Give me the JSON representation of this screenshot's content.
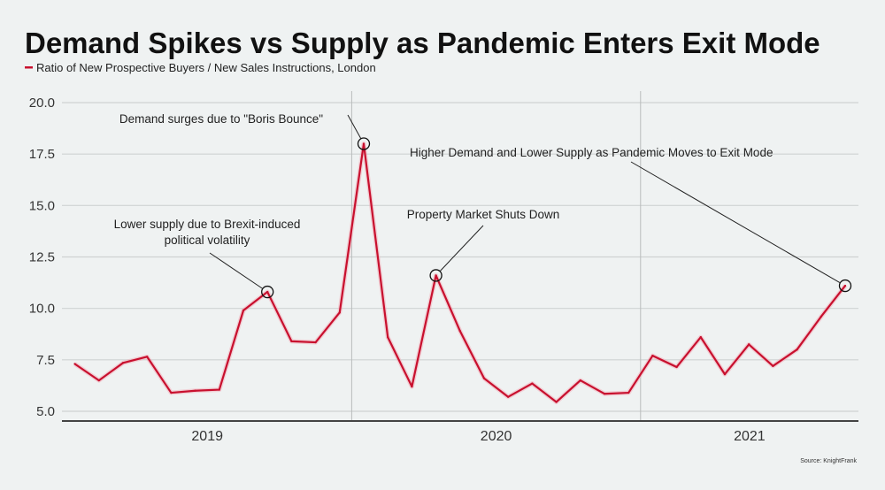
{
  "chart_data": {
    "type": "line",
    "title": "Demand Spikes vs Supply as Pandemic Enters Exit Mode",
    "legend": {
      "label": "Ratio of New Prospective Buyers / New Sales Instructions, London",
      "placement": "top-left",
      "color": "#c8102e"
    },
    "xlabel": "",
    "ylabel": "",
    "ylim": [
      5,
      20
    ],
    "yticks": [
      "5.0",
      "7.5",
      "10.0",
      "12.5",
      "15.0",
      "17.5",
      "20.0"
    ],
    "ytick_values": [
      5,
      7.5,
      10,
      12.5,
      15,
      17.5,
      20
    ],
    "year_labels": [
      "2019",
      "2020",
      "2021"
    ],
    "grid": true,
    "x": [
      "2019-01",
      "2019-02",
      "2019-03",
      "2019-04",
      "2019-05",
      "2019-06",
      "2019-07",
      "2019-08",
      "2019-09",
      "2019-10",
      "2019-11",
      "2019-12",
      "2020-01",
      "2020-02",
      "2020-03",
      "2020-04",
      "2020-05",
      "2020-06",
      "2020-07",
      "2020-08",
      "2020-09",
      "2020-10",
      "2020-11",
      "2020-12",
      "2021-01",
      "2021-02",
      "2021-03",
      "2021-04",
      "2021-05",
      "2021-06",
      "2021-07",
      "2021-08",
      "2021-09"
    ],
    "series": [
      {
        "name": "Ratio of New Prospective Buyers / New Sales Instructions, London",
        "color": "#c8102e",
        "values": [
          7.3,
          6.5,
          7.35,
          7.65,
          5.9,
          6.0,
          6.05,
          9.9,
          10.8,
          8.4,
          8.35,
          9.8,
          18.0,
          8.6,
          6.2,
          11.6,
          8.9,
          6.6,
          5.7,
          6.35,
          5.45,
          6.5,
          5.85,
          5.9,
          7.7,
          7.15,
          8.6,
          6.8,
          8.25,
          7.2,
          8.0,
          9.6,
          11.1
        ]
      }
    ],
    "annotations": [
      {
        "point_index": 8,
        "lines": [
          "Lower supply due to Brexit-induced",
          "political volatility"
        ]
      },
      {
        "point_index": 12,
        "lines": [
          "Demand surges due to \"Boris Bounce\""
        ]
      },
      {
        "point_index": 15,
        "lines": [
          "Property Market Shuts Down"
        ]
      },
      {
        "point_index": 32,
        "lines": [
          "Higher Demand and Lower Supply as Pandemic Moves to Exit Mode"
        ]
      }
    ],
    "source": "Source: KnightFrank"
  }
}
